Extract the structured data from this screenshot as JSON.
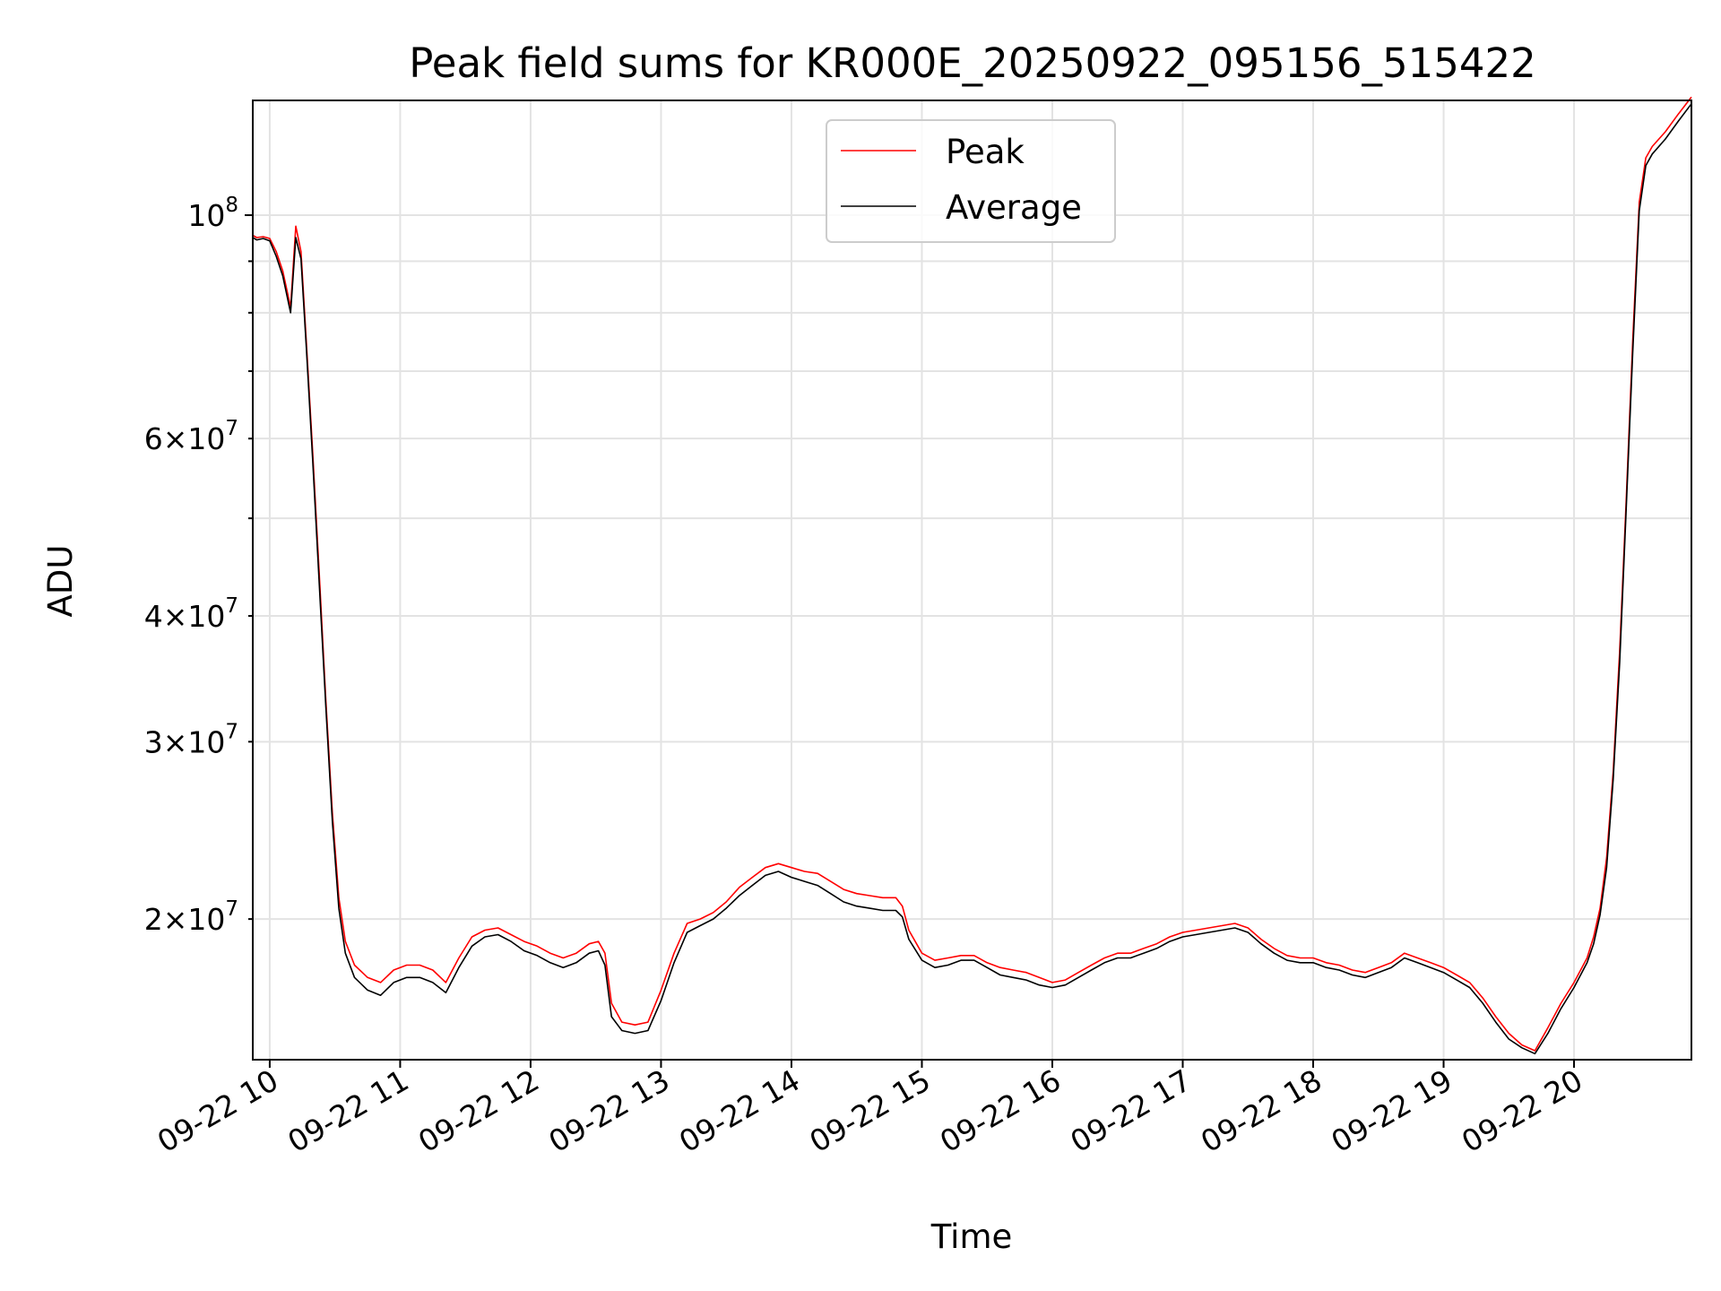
{
  "chart_data": {
    "type": "line",
    "title": "Peak field sums for KR000E_20250922_095156_515422",
    "xlabel": "Time",
    "ylabel": "ADU",
    "yscale": "log",
    "grid": true,
    "legend_position": "top-center",
    "xlim": [
      9.87,
      20.9
    ],
    "ylim": [
      14500000,
      130000000
    ],
    "x_ticks": [
      {
        "value": 10,
        "label": "09-22 10"
      },
      {
        "value": 11,
        "label": "09-22 11"
      },
      {
        "value": 12,
        "label": "09-22 12"
      },
      {
        "value": 13,
        "label": "09-22 13"
      },
      {
        "value": 14,
        "label": "09-22 14"
      },
      {
        "value": 15,
        "label": "09-22 15"
      },
      {
        "value": 16,
        "label": "09-22 16"
      },
      {
        "value": 17,
        "label": "09-22 17"
      },
      {
        "value": 18,
        "label": "09-22 18"
      },
      {
        "value": 19,
        "label": "09-22 19"
      },
      {
        "value": 20,
        "label": "09-22 20"
      }
    ],
    "y_major_ticks": [
      {
        "value": 100000000,
        "base": "10",
        "exp": "8"
      }
    ],
    "y_minor_ticks": [
      {
        "value": 20000000,
        "mant": "2",
        "base": "10",
        "exp": "7"
      },
      {
        "value": 30000000,
        "mant": "3",
        "base": "10",
        "exp": "7"
      },
      {
        "value": 40000000,
        "mant": "4",
        "base": "10",
        "exp": "7"
      },
      {
        "value": 60000000,
        "mant": "6",
        "base": "10",
        "exp": "7"
      },
      {
        "value": 50000000
      },
      {
        "value": 70000000
      },
      {
        "value": 80000000
      },
      {
        "value": 90000000
      }
    ],
    "times_symbol": "×",
    "series": [
      {
        "name": "Peak",
        "color": "#ff0000",
        "points": [
          [
            9.87,
            95500000
          ],
          [
            9.9,
            95000000
          ],
          [
            9.95,
            95200000
          ],
          [
            10.0,
            94800000
          ],
          [
            10.05,
            92000000
          ],
          [
            10.1,
            88000000
          ],
          [
            10.16,
            81000000
          ],
          [
            10.2,
            97500000
          ],
          [
            10.24,
            92000000
          ],
          [
            10.28,
            75000000
          ],
          [
            10.33,
            58000000
          ],
          [
            10.38,
            44000000
          ],
          [
            10.43,
            33000000
          ],
          [
            10.48,
            25500000
          ],
          [
            10.53,
            21000000
          ],
          [
            10.58,
            19000000
          ],
          [
            10.65,
            18000000
          ],
          [
            10.75,
            17500000
          ],
          [
            10.85,
            17300000
          ],
          [
            10.95,
            17800000
          ],
          [
            11.05,
            18000000
          ],
          [
            11.15,
            18000000
          ],
          [
            11.25,
            17800000
          ],
          [
            11.35,
            17300000
          ],
          [
            11.45,
            18300000
          ],
          [
            11.55,
            19200000
          ],
          [
            11.65,
            19500000
          ],
          [
            11.75,
            19600000
          ],
          [
            11.85,
            19300000
          ],
          [
            11.95,
            19000000
          ],
          [
            12.05,
            18800000
          ],
          [
            12.15,
            18500000
          ],
          [
            12.25,
            18300000
          ],
          [
            12.35,
            18500000
          ],
          [
            12.45,
            18900000
          ],
          [
            12.52,
            19000000
          ],
          [
            12.57,
            18500000
          ],
          [
            12.62,
            16500000
          ],
          [
            12.7,
            15800000
          ],
          [
            12.8,
            15700000
          ],
          [
            12.9,
            15800000
          ],
          [
            13.0,
            17000000
          ],
          [
            13.1,
            18500000
          ],
          [
            13.2,
            19800000
          ],
          [
            13.3,
            20000000
          ],
          [
            13.4,
            20300000
          ],
          [
            13.5,
            20800000
          ],
          [
            13.6,
            21500000
          ],
          [
            13.7,
            22000000
          ],
          [
            13.8,
            22500000
          ],
          [
            13.9,
            22700000
          ],
          [
            14.0,
            22500000
          ],
          [
            14.1,
            22300000
          ],
          [
            14.2,
            22200000
          ],
          [
            14.3,
            21800000
          ],
          [
            14.4,
            21400000
          ],
          [
            14.5,
            21200000
          ],
          [
            14.6,
            21100000
          ],
          [
            14.7,
            21000000
          ],
          [
            14.8,
            21000000
          ],
          [
            14.85,
            20600000
          ],
          [
            14.9,
            19500000
          ],
          [
            15.0,
            18500000
          ],
          [
            15.1,
            18200000
          ],
          [
            15.2,
            18300000
          ],
          [
            15.3,
            18400000
          ],
          [
            15.4,
            18400000
          ],
          [
            15.5,
            18100000
          ],
          [
            15.6,
            17900000
          ],
          [
            15.7,
            17800000
          ],
          [
            15.8,
            17700000
          ],
          [
            15.9,
            17500000
          ],
          [
            16.0,
            17300000
          ],
          [
            16.1,
            17400000
          ],
          [
            16.2,
            17700000
          ],
          [
            16.3,
            18000000
          ],
          [
            16.4,
            18300000
          ],
          [
            16.5,
            18500000
          ],
          [
            16.6,
            18500000
          ],
          [
            16.7,
            18700000
          ],
          [
            16.8,
            18900000
          ],
          [
            16.9,
            19200000
          ],
          [
            17.0,
            19400000
          ],
          [
            17.1,
            19500000
          ],
          [
            17.2,
            19600000
          ],
          [
            17.3,
            19700000
          ],
          [
            17.4,
            19800000
          ],
          [
            17.5,
            19600000
          ],
          [
            17.6,
            19100000
          ],
          [
            17.7,
            18700000
          ],
          [
            17.8,
            18400000
          ],
          [
            17.9,
            18300000
          ],
          [
            18.0,
            18300000
          ],
          [
            18.1,
            18100000
          ],
          [
            18.2,
            18000000
          ],
          [
            18.3,
            17800000
          ],
          [
            18.4,
            17700000
          ],
          [
            18.5,
            17900000
          ],
          [
            18.6,
            18100000
          ],
          [
            18.7,
            18500000
          ],
          [
            18.8,
            18300000
          ],
          [
            18.9,
            18100000
          ],
          [
            19.0,
            17900000
          ],
          [
            19.1,
            17600000
          ],
          [
            19.2,
            17300000
          ],
          [
            19.3,
            16700000
          ],
          [
            19.4,
            16000000
          ],
          [
            19.5,
            15400000
          ],
          [
            19.6,
            15000000
          ],
          [
            19.7,
            14800000
          ],
          [
            19.8,
            15600000
          ],
          [
            19.9,
            16500000
          ],
          [
            20.0,
            17300000
          ],
          [
            20.1,
            18300000
          ],
          [
            20.15,
            19200000
          ],
          [
            20.2,
            20500000
          ],
          [
            20.25,
            23000000
          ],
          [
            20.3,
            28000000
          ],
          [
            20.35,
            37000000
          ],
          [
            20.4,
            52000000
          ],
          [
            20.45,
            75000000
          ],
          [
            20.5,
            103000000
          ],
          [
            20.55,
            114000000
          ],
          [
            20.6,
            117000000
          ],
          [
            20.7,
            121000000
          ],
          [
            20.8,
            126000000
          ],
          [
            20.9,
            131000000
          ]
        ]
      },
      {
        "name": "Average",
        "color": "#000000",
        "points": [
          [
            9.87,
            95000000
          ],
          [
            9.9,
            94500000
          ],
          [
            9.95,
            94800000
          ],
          [
            10.0,
            94300000
          ],
          [
            10.05,
            91000000
          ],
          [
            10.1,
            87000000
          ],
          [
            10.16,
            80000000
          ],
          [
            10.2,
            95000000
          ],
          [
            10.24,
            90500000
          ],
          [
            10.28,
            74000000
          ],
          [
            10.33,
            57000000
          ],
          [
            10.38,
            43000000
          ],
          [
            10.43,
            32500000
          ],
          [
            10.48,
            25000000
          ],
          [
            10.53,
            20500000
          ],
          [
            10.58,
            18500000
          ],
          [
            10.65,
            17500000
          ],
          [
            10.75,
            17000000
          ],
          [
            10.85,
            16800000
          ],
          [
            10.95,
            17300000
          ],
          [
            11.05,
            17500000
          ],
          [
            11.15,
            17500000
          ],
          [
            11.25,
            17300000
          ],
          [
            11.35,
            16900000
          ],
          [
            11.45,
            17900000
          ],
          [
            11.55,
            18800000
          ],
          [
            11.65,
            19200000
          ],
          [
            11.75,
            19300000
          ],
          [
            11.85,
            19000000
          ],
          [
            11.95,
            18600000
          ],
          [
            12.05,
            18400000
          ],
          [
            12.15,
            18100000
          ],
          [
            12.25,
            17900000
          ],
          [
            12.35,
            18100000
          ],
          [
            12.45,
            18500000
          ],
          [
            12.52,
            18600000
          ],
          [
            12.57,
            18000000
          ],
          [
            12.62,
            16000000
          ],
          [
            12.7,
            15500000
          ],
          [
            12.8,
            15400000
          ],
          [
            12.9,
            15500000
          ],
          [
            13.0,
            16600000
          ],
          [
            13.1,
            18100000
          ],
          [
            13.2,
            19400000
          ],
          [
            13.3,
            19700000
          ],
          [
            13.4,
            20000000
          ],
          [
            13.5,
            20500000
          ],
          [
            13.6,
            21100000
          ],
          [
            13.7,
            21600000
          ],
          [
            13.8,
            22100000
          ],
          [
            13.9,
            22300000
          ],
          [
            14.0,
            22000000
          ],
          [
            14.1,
            21800000
          ],
          [
            14.2,
            21600000
          ],
          [
            14.3,
            21200000
          ],
          [
            14.4,
            20800000
          ],
          [
            14.5,
            20600000
          ],
          [
            14.6,
            20500000
          ],
          [
            14.7,
            20400000
          ],
          [
            14.8,
            20400000
          ],
          [
            14.85,
            20100000
          ],
          [
            14.9,
            19100000
          ],
          [
            15.0,
            18200000
          ],
          [
            15.1,
            17900000
          ],
          [
            15.2,
            18000000
          ],
          [
            15.3,
            18200000
          ],
          [
            15.4,
            18200000
          ],
          [
            15.5,
            17900000
          ],
          [
            15.6,
            17600000
          ],
          [
            15.7,
            17500000
          ],
          [
            15.8,
            17400000
          ],
          [
            15.9,
            17200000
          ],
          [
            16.0,
            17100000
          ],
          [
            16.1,
            17200000
          ],
          [
            16.2,
            17500000
          ],
          [
            16.3,
            17800000
          ],
          [
            16.4,
            18100000
          ],
          [
            16.5,
            18300000
          ],
          [
            16.6,
            18300000
          ],
          [
            16.7,
            18500000
          ],
          [
            16.8,
            18700000
          ],
          [
            16.9,
            19000000
          ],
          [
            17.0,
            19200000
          ],
          [
            17.1,
            19300000
          ],
          [
            17.2,
            19400000
          ],
          [
            17.3,
            19500000
          ],
          [
            17.4,
            19600000
          ],
          [
            17.5,
            19400000
          ],
          [
            17.6,
            18900000
          ],
          [
            17.7,
            18500000
          ],
          [
            17.8,
            18200000
          ],
          [
            17.9,
            18100000
          ],
          [
            18.0,
            18100000
          ],
          [
            18.1,
            17900000
          ],
          [
            18.2,
            17800000
          ],
          [
            18.3,
            17600000
          ],
          [
            18.4,
            17500000
          ],
          [
            18.5,
            17700000
          ],
          [
            18.6,
            17900000
          ],
          [
            18.7,
            18300000
          ],
          [
            18.8,
            18100000
          ],
          [
            18.9,
            17900000
          ],
          [
            19.0,
            17700000
          ],
          [
            19.1,
            17400000
          ],
          [
            19.2,
            17100000
          ],
          [
            19.3,
            16500000
          ],
          [
            19.4,
            15800000
          ],
          [
            19.5,
            15200000
          ],
          [
            19.6,
            14900000
          ],
          [
            19.7,
            14700000
          ],
          [
            19.8,
            15400000
          ],
          [
            19.9,
            16300000
          ],
          [
            20.0,
            17100000
          ],
          [
            20.1,
            18100000
          ],
          [
            20.15,
            18900000
          ],
          [
            20.2,
            20200000
          ],
          [
            20.25,
            22500000
          ],
          [
            20.3,
            27500000
          ],
          [
            20.35,
            36000000
          ],
          [
            20.4,
            51000000
          ],
          [
            20.45,
            73000000
          ],
          [
            20.5,
            101000000
          ],
          [
            20.55,
            112000000
          ],
          [
            20.6,
            115000000
          ],
          [
            20.7,
            119000000
          ],
          [
            20.8,
            124000000
          ],
          [
            20.9,
            129000000
          ]
        ]
      }
    ]
  }
}
